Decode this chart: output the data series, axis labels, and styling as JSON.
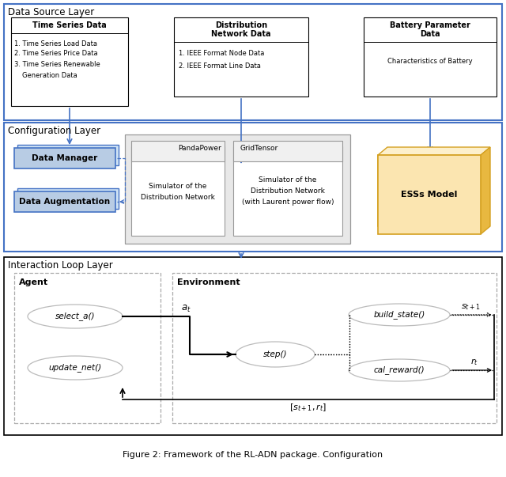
{
  "bg_color": "#ffffff",
  "layer1_title": "Data Source Layer",
  "layer1_border": "#4472c4",
  "layer2_title": "Configuration Layer",
  "layer2_border": "#4472c4",
  "layer3_title": "Interaction Loop Layer",
  "layer3_border": "#000000",
  "blue_arrow": "#4472c4",
  "box_blue_fill": "#b8cce4",
  "box_blue_edge": "#4472c4",
  "box_orange_fill": "#fbe5b0",
  "box_orange_edge": "#d4a020",
  "box_orange_side": "#e8b840",
  "box_orange_top": "#fdf0cc",
  "caption": "Figure 2: Framework of the RL-ADN package. Configuration"
}
